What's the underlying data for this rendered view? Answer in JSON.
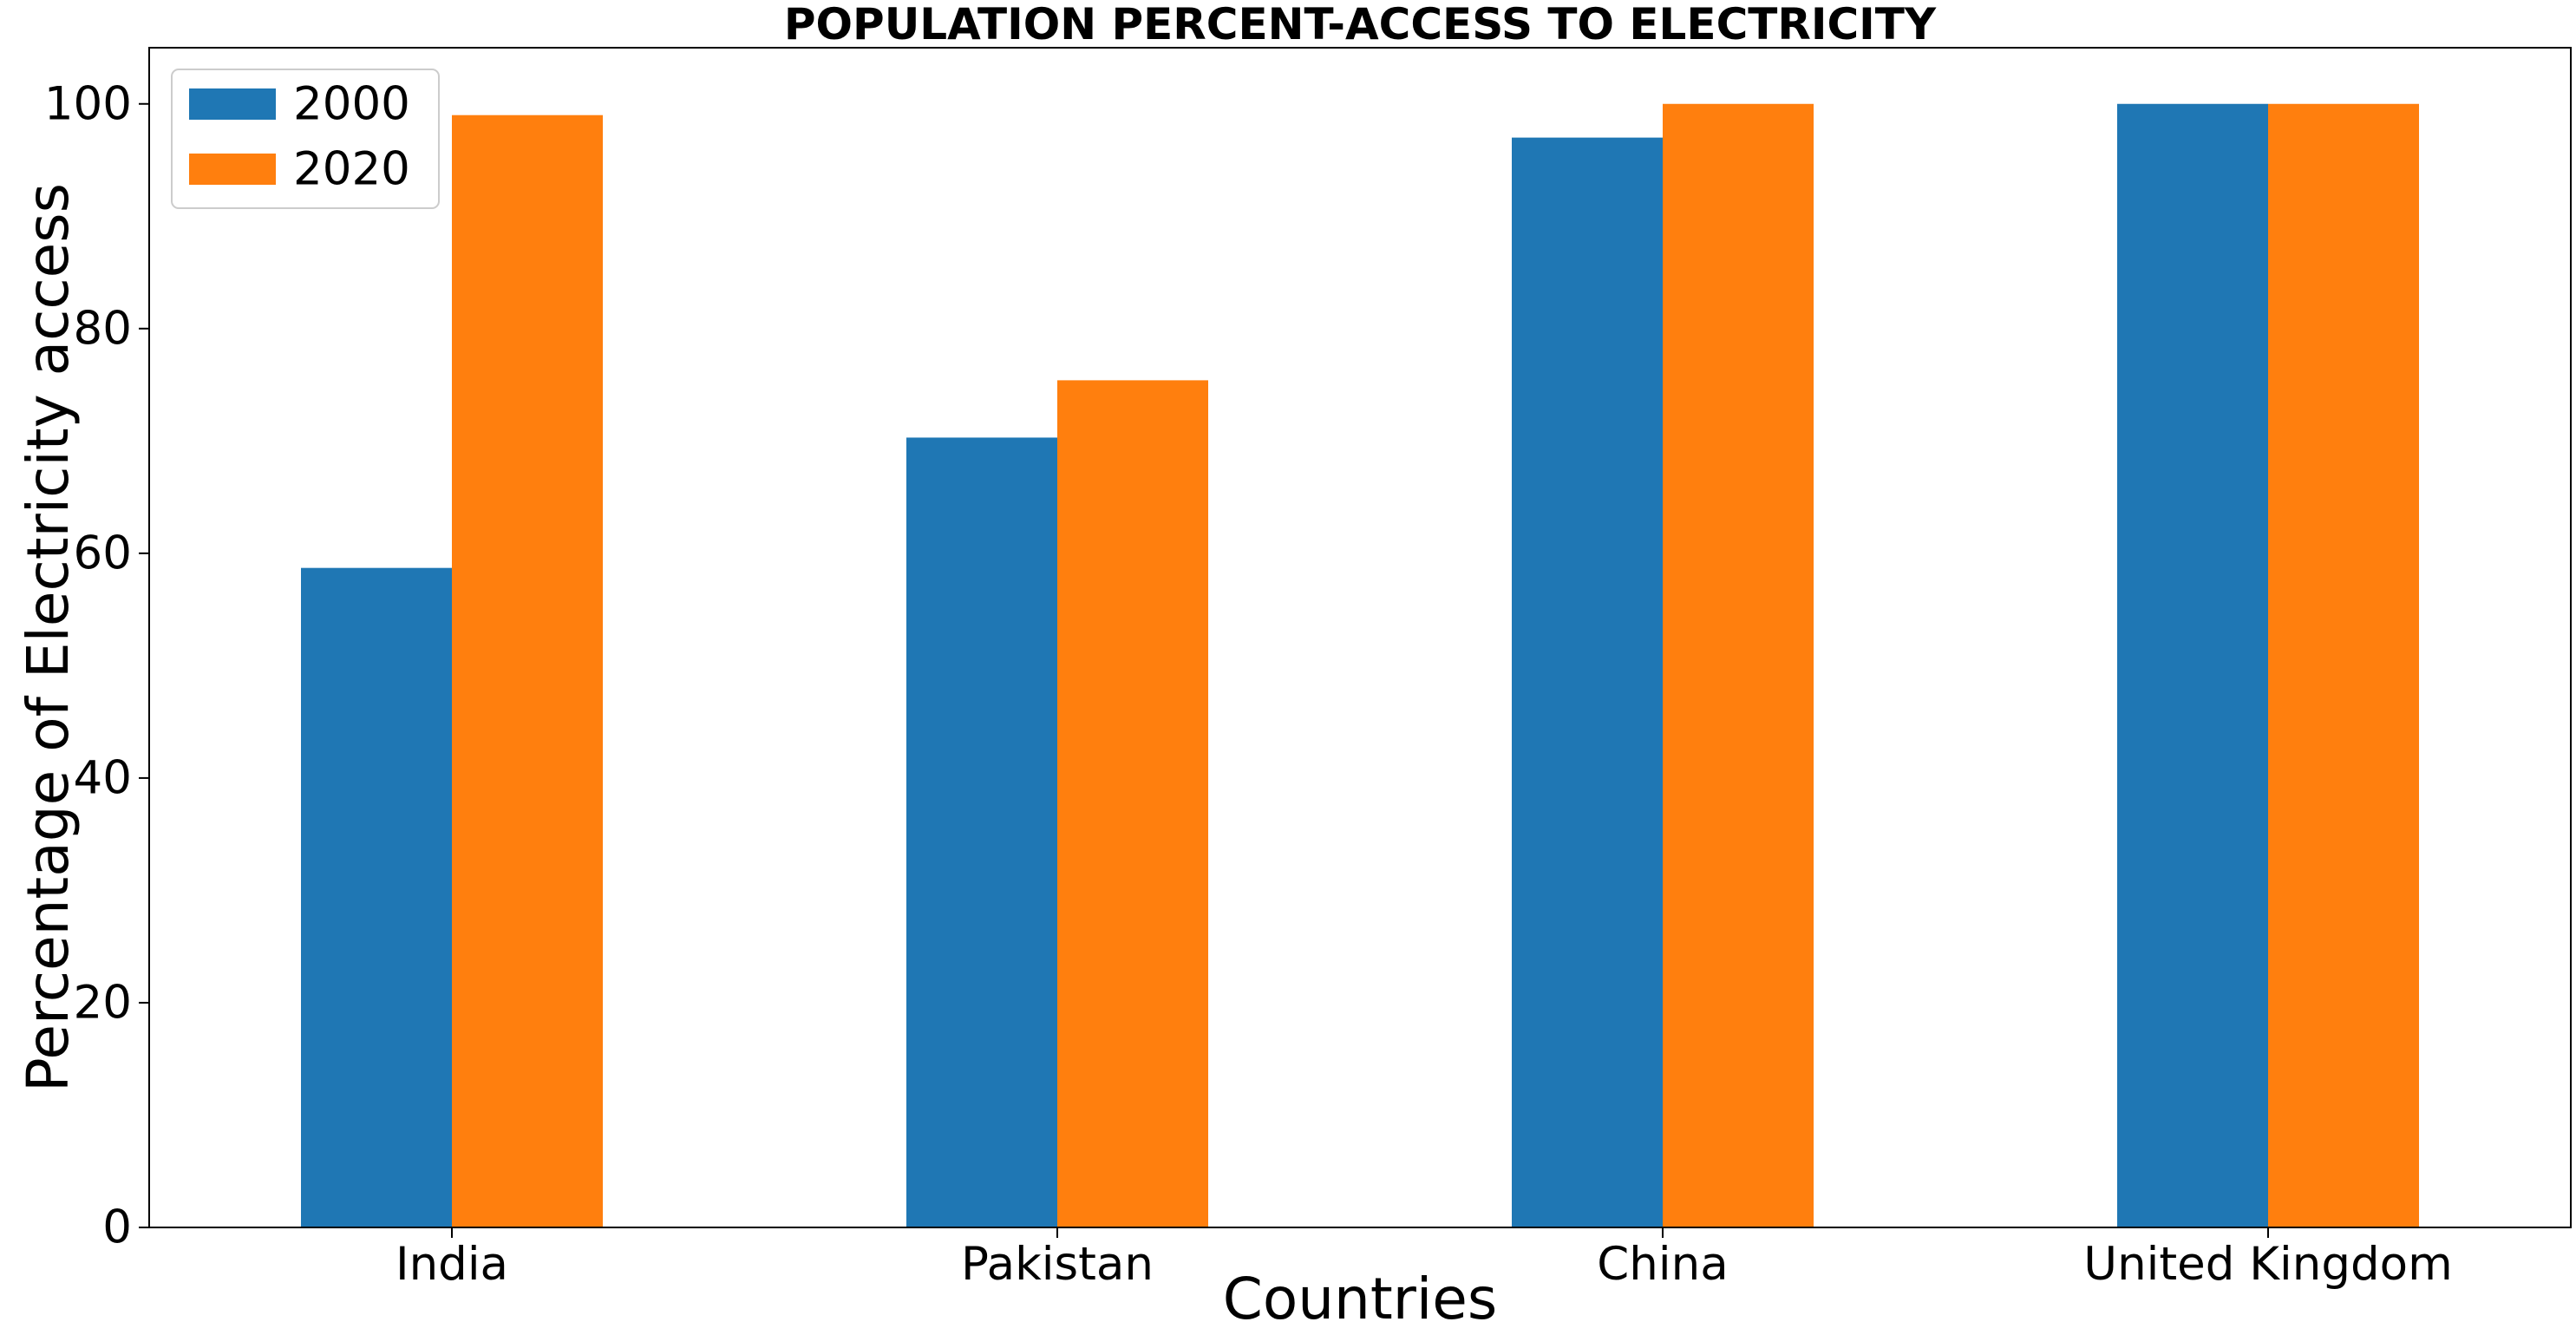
{
  "chart_data": {
    "type": "bar",
    "title": "POPULATION PERCENT-ACCESS TO ELECTRICITY",
    "xlabel": "Countries",
    "ylabel": "Percentage of Electricity access",
    "categories": [
      "India",
      "Pakistan",
      "China",
      "United Kingdom"
    ],
    "series": [
      {
        "name": "2000",
        "color": "#1f77b4",
        "values": [
          58.7,
          70.3,
          97.0,
          100.0
        ]
      },
      {
        "name": "2020",
        "color": "#ff7f0e",
        "values": [
          99.0,
          75.4,
          100.0,
          100.0
        ]
      }
    ],
    "ylim": [
      0,
      105
    ],
    "yticks": [
      0,
      20,
      40,
      60,
      80,
      100
    ],
    "grid": false,
    "legend_position": "top-left"
  }
}
